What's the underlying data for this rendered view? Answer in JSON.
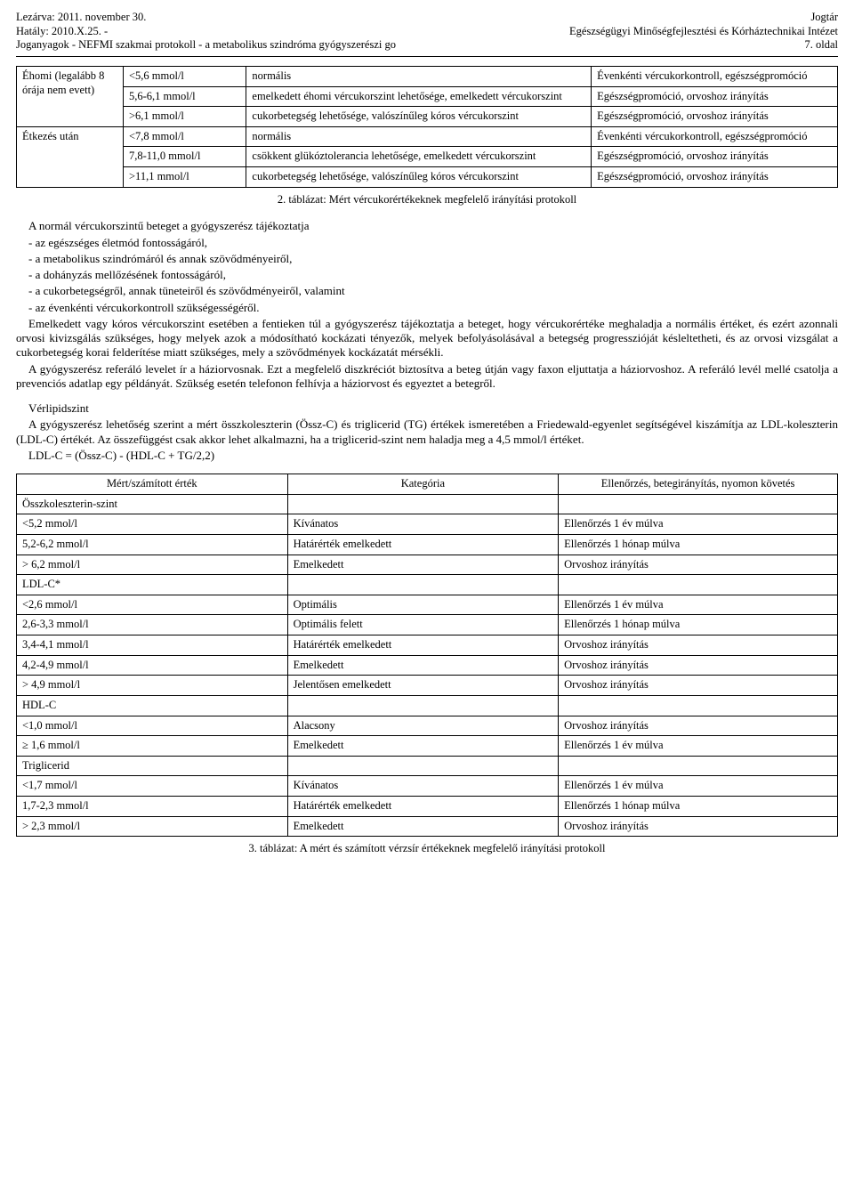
{
  "header": {
    "left1": "Lezárva: 2011. november 30.",
    "left2": "Hatály: 2010.X.25. -",
    "left3": "Joganyagok - NEFMI szakmai protokoll - a metabolikus szindróma gyógyszerészi go",
    "right1": "Jogtár",
    "right2": "Egészségügyi Minőségfejlesztési és Kórháztechnikai Intézet",
    "right3": "7. oldal"
  },
  "table1": {
    "groups": [
      {
        "label": "Éhomi (legalább 8 órája nem evett)",
        "rows": [
          {
            "value": "<5,6 mmol/l",
            "category": "normális",
            "action": "Évenkénti vércukorkontroll, egészségpromóció"
          },
          {
            "value": "5,6-6,1 mmol/l",
            "category": "emelkedett éhomi vércukorszint lehetősége, emelkedett vércukorszint",
            "action": "Egészségpromóció, orvoshoz irányítás"
          },
          {
            "value": ">6,1 mmol/l",
            "category": "cukorbetegség lehetősége, valószínűleg kóros vércukorszint",
            "action": "Egészségpromóció, orvoshoz irányítás"
          }
        ]
      },
      {
        "label": "Étkezés után",
        "rows": [
          {
            "value": "<7,8 mmol/l",
            "category": "normális",
            "action": "Évenkénti vércukorkontroll, egészségpromóció"
          },
          {
            "value": "7,8-11,0 mmol/l",
            "category": "csökkent glükóztolerancia lehetősége, emelkedett vércukorszint",
            "action": "Egészségpromóció, orvoshoz irányítás"
          },
          {
            "value": ">11,1 mmol/l",
            "category": "cukorbetegség lehetősége, valószínűleg kóros vércukorszint",
            "action": "Egészségpromóció, orvoshoz irányítás"
          }
        ]
      }
    ],
    "caption": "2. táblázat: Mért vércukorértékeknek megfelelő irányítási protokoll"
  },
  "body1": {
    "p1": "A normál vércukorszintű beteget a gyógyszerész tájékoztatja",
    "l1": "- az egészséges életmód fontosságáról,",
    "l2": "- a metabolikus szindrómáról és annak szövődményeiről,",
    "l3": "- a dohányzás mellőzésének fontosságáról,",
    "l4": "- a cukorbetegségről, annak tüneteiről és szövődményeiről, valamint",
    "l5": "- az évenkénti vércukorkontroll szükségességéről.",
    "p2": "Emelkedett vagy kóros vércukorszint esetében a fentieken túl a gyógyszerész tájékoztatja a beteget, hogy vércukorértéke meghaladja a normális értéket, és ezért azonnali orvosi kivizsgálás szükséges, hogy melyek azok a módosítható kockázati tényezők, melyek befolyásolásával a betegség progresszióját késleltetheti, és az orvosi vizsgálat a cukorbetegség korai felderítése miatt szükséges, mely a szövődmények kockázatát mérsékli.",
    "p3": "A gyógyszerész referáló levelet ír a háziorvosnak. Ezt a megfelelő diszkréciót biztosítva a beteg útján vagy faxon eljuttatja a háziorvoshoz. A referáló levél mellé csatolja a prevenciós adatlap egy példányát. Szükség esetén telefonon felhívja a háziorvost és egyeztet a betegről."
  },
  "body2": {
    "h": "Vérlipidszint",
    "p1": "A gyógyszerész lehetőség szerint a mért összkoleszterin (Össz-C) és triglicerid (TG) értékek ismeretében a Friedewald-egyenlet segítségével kiszámítja az LDL-koleszterin (LDL-C) értékét. Az összefüggést csak akkor lehet alkalmazni, ha a triglicerid-szint nem haladja meg a 4,5 mmol/l értéket.",
    "p2": "LDL-C = (Össz-C) - (HDL-C + TG/2,2)"
  },
  "table2": {
    "headers": {
      "c0": "Mért/számított érték",
      "c1": "Kategória",
      "c2": "Ellenőrzés, betegirányítás, nyomon követés"
    },
    "sections": [
      {
        "title": "Összkoleszterin-szint",
        "rows": [
          {
            "v": "<5,2 mmol/l",
            "k": "Kívánatos",
            "a": "Ellenőrzés 1 év múlva"
          },
          {
            "v": "5,2-6,2 mmol/l",
            "k": "Határérték emelkedett",
            "a": "Ellenőrzés 1 hónap múlva"
          },
          {
            "v": "> 6,2 mmol/l",
            "k": "Emelkedett",
            "a": "Orvoshoz irányítás"
          }
        ]
      },
      {
        "title": "LDL-C*",
        "rows": [
          {
            "v": "<2,6 mmol/l",
            "k": "Optimális",
            "a": "Ellenőrzés 1 év múlva"
          },
          {
            "v": "2,6-3,3 mmol/l",
            "k": "Optimális felett",
            "a": "Ellenőrzés 1 hónap múlva"
          },
          {
            "v": "3,4-4,1 mmol/l",
            "k": "Határérték emelkedett",
            "a": "Orvoshoz irányítás"
          },
          {
            "v": "4,2-4,9 mmol/l",
            "k": "Emelkedett",
            "a": "Orvoshoz irányítás"
          },
          {
            "v": "> 4,9 mmol/l",
            "k": "Jelentősen emelkedett",
            "a": "Orvoshoz irányítás"
          }
        ]
      },
      {
        "title": "HDL-C",
        "rows": [
          {
            "v": "<1,0 mmol/l",
            "k": "Alacsony",
            "a": "Orvoshoz irányítás"
          },
          {
            "v": "≥ 1,6 mmol/l",
            "k": "Emelkedett",
            "a": "Ellenőrzés 1 év múlva"
          }
        ]
      },
      {
        "title": "Triglicerid",
        "rows": [
          {
            "v": "<1,7 mmol/l",
            "k": "Kívánatos",
            "a": "Ellenőrzés 1 év múlva"
          },
          {
            "v": "1,7-2,3 mmol/l",
            "k": "Határérték emelkedett",
            "a": "Ellenőrzés 1 hónap múlva"
          },
          {
            "v": "> 2,3 mmol/l",
            "k": "Emelkedett",
            "a": "Orvoshoz irányítás"
          }
        ]
      }
    ],
    "caption": "3. táblázat: A mért és számított vérzsír értékeknek megfelelő irányítási protokoll"
  }
}
